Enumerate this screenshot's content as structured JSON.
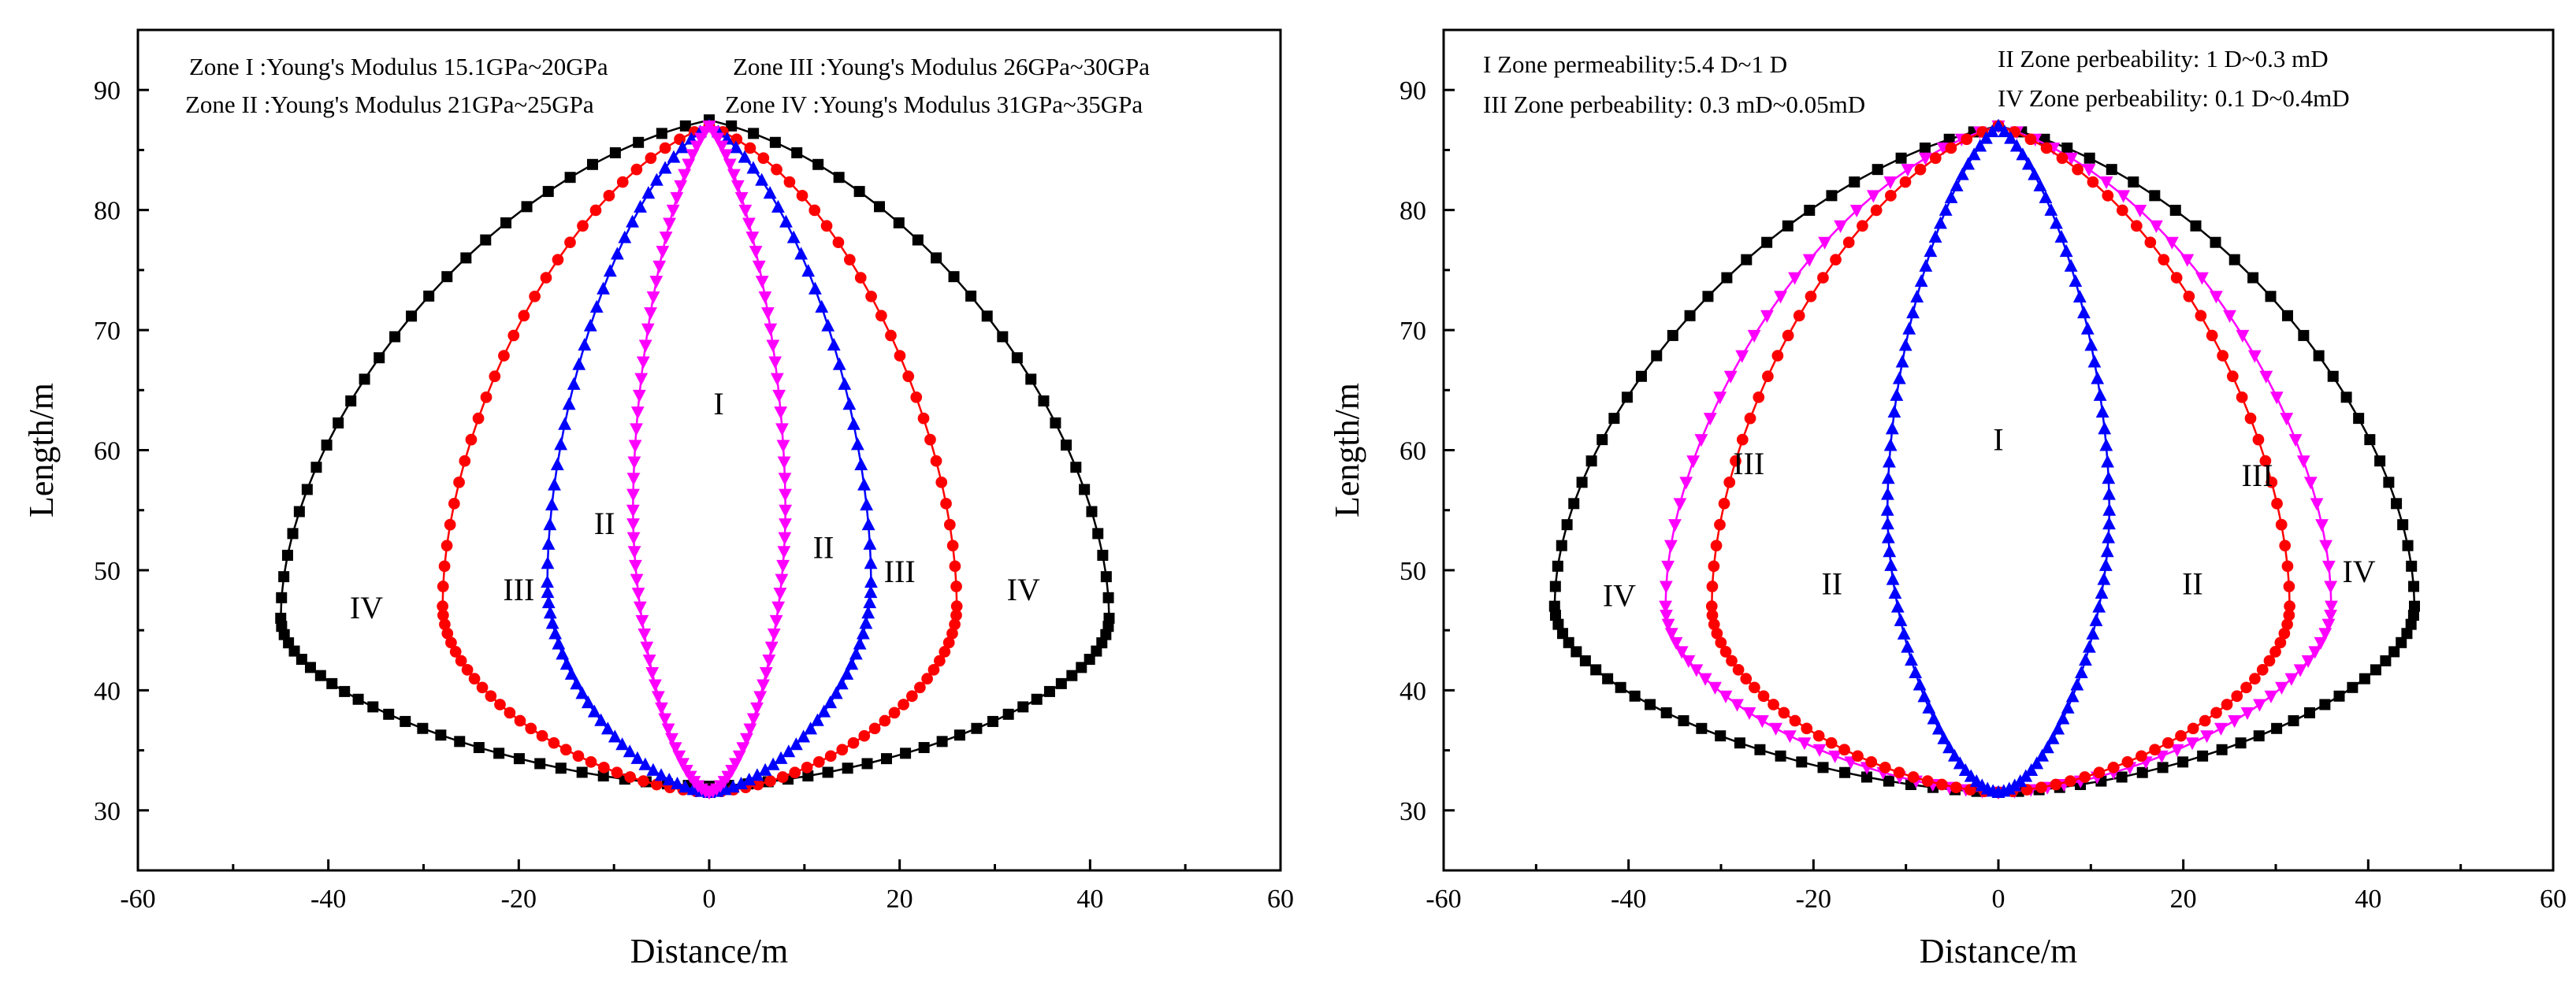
{
  "chart_data": [
    {
      "type": "line",
      "xlabel": "Distance/m",
      "ylabel": "Length/m",
      "xlim": [
        -60,
        60
      ],
      "ylim": [
        25,
        95
      ],
      "xticks": [
        -60,
        -40,
        -20,
        0,
        20,
        40,
        60
      ],
      "yticks": [
        30,
        40,
        50,
        60,
        70,
        80,
        90
      ],
      "legend_lines": [
        "Zone I :Young's Modulus 15.1GPa~20GPa",
        "Zone III :Young's Modulus 26GPa~30GPa",
        "Zone II :Young's Modulus 21GPa~25GPa",
        "Zone IV :Young's Modulus 31GPa~35GPa"
      ],
      "series": [
        {
          "name": "Zone IV",
          "color": "#000000",
          "marker": "square",
          "top": 87.5,
          "bottom": 32,
          "left": {
            "x": -45,
            "y": 46
          },
          "right": {
            "x": 42,
            "y": 46
          }
        },
        {
          "name": "Zone III",
          "color": "#ff0000",
          "marker": "circle",
          "top": 87,
          "bottom": 31.5,
          "left": {
            "x": -28,
            "y": 47
          },
          "right": {
            "x": 26,
            "y": 47
          }
        },
        {
          "name": "Zone II",
          "color": "#0000ff",
          "marker": "triangle-up",
          "top": 87,
          "bottom": 31.5,
          "left": {
            "x": -17,
            "y": 49
          },
          "right": {
            "x": 17,
            "y": 49
          }
        },
        {
          "name": "Zone I",
          "color": "#ff00ff",
          "marker": "triangle-down",
          "top": 87,
          "bottom": 31.5,
          "left": {
            "x": -8,
            "y": 55
          },
          "right": {
            "x": 8,
            "y": 55
          }
        }
      ],
      "zone_labels": [
        {
          "text": "I",
          "x": 1,
          "y": 63
        },
        {
          "text": "II",
          "x": -11,
          "y": 53
        },
        {
          "text": "II",
          "x": 12,
          "y": 51
        },
        {
          "text": "III",
          "x": -20,
          "y": 47.5
        },
        {
          "text": "III",
          "x": 20,
          "y": 49
        },
        {
          "text": "IV",
          "x": -36,
          "y": 46
        },
        {
          "text": "IV",
          "x": 33,
          "y": 47.5
        }
      ]
    },
    {
      "type": "line",
      "xlabel": "Distance/m",
      "ylabel": "Length/m",
      "xlim": [
        -60,
        60
      ],
      "ylim": [
        25,
        95
      ],
      "xticks": [
        -60,
        -40,
        -20,
        0,
        20,
        40,
        60
      ],
      "yticks": [
        30,
        40,
        50,
        60,
        70,
        80,
        90
      ],
      "legend_lines": [
        "I Zone permeability:5.4 D~1 D",
        "II Zone perbeability: 1 D~0.3 mD",
        "III Zone perbeability: 0.3 mD~0.05mD",
        "IV Zone perbeability: 0.1 D~0.4mD"
      ],
      "series": [
        {
          "name": "Zone IV",
          "color": "#000000",
          "marker": "square",
          "top": 87,
          "bottom": 31.5,
          "left": {
            "x": -48,
            "y": 47
          },
          "right": {
            "x": 45,
            "y": 47
          }
        },
        {
          "name": "Zone III",
          "color": "#ff00ff",
          "marker": "triangle-down",
          "top": 87,
          "bottom": 31.5,
          "left": {
            "x": -36,
            "y": 47
          },
          "right": {
            "x": 36,
            "y": 47
          }
        },
        {
          "name": "Zone II",
          "color": "#ff0000",
          "marker": "circle",
          "top": 87,
          "bottom": 31.5,
          "left": {
            "x": -31,
            "y": 47
          },
          "right": {
            "x": 31.5,
            "y": 47
          }
        },
        {
          "name": "Zone I",
          "color": "#0000ff",
          "marker": "triangle-up",
          "top": 87,
          "bottom": 31.5,
          "left": {
            "x": -12,
            "y": 55
          },
          "right": {
            "x": 12,
            "y": 55
          }
        }
      ],
      "zone_labels": [
        {
          "text": "I",
          "x": 0,
          "y": 60
        },
        {
          "text": "II",
          "x": -18,
          "y": 48
        },
        {
          "text": "II",
          "x": 21,
          "y": 48
        },
        {
          "text": "III",
          "x": -27,
          "y": 58
        },
        {
          "text": "III",
          "x": 28,
          "y": 57
        },
        {
          "text": "IV",
          "x": -41,
          "y": 47
        },
        {
          "text": "IV",
          "x": 39,
          "y": 49
        }
      ]
    }
  ]
}
